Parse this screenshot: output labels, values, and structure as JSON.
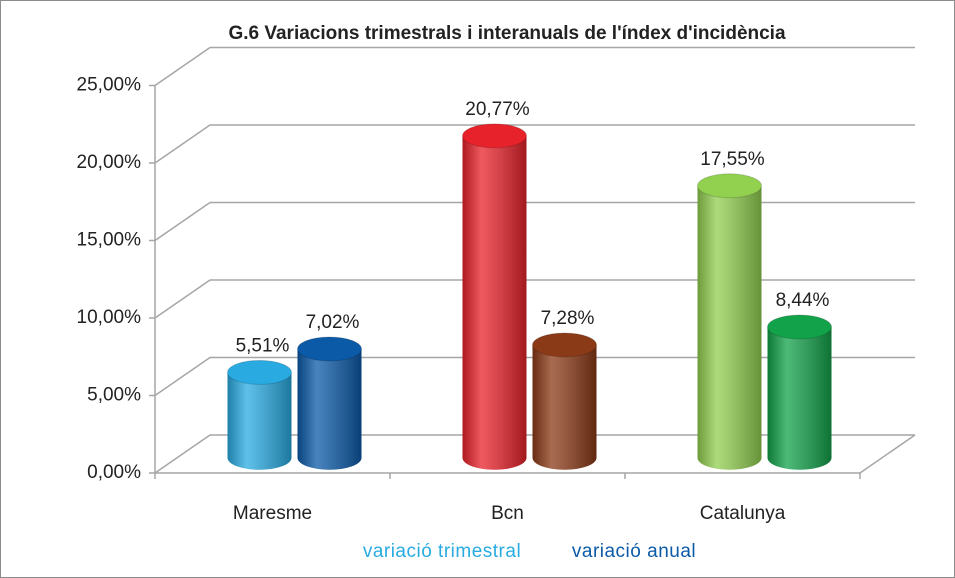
{
  "chart_data": {
    "type": "bar3d",
    "title": "G.6 Variacions trimestrals i interanuals de l'índex d'incidència",
    "categories": [
      "Maresme",
      "Bcn",
      "Catalunya"
    ],
    "series": [
      {
        "name": "variació trimestral",
        "color": "#29abe2",
        "colors": [
          "#29abe2",
          "#e8222a",
          "#92d050"
        ],
        "values": [
          5.51,
          20.77,
          17.55
        ],
        "value_labels": [
          "5,51%",
          "20,77%",
          "17,55%"
        ]
      },
      {
        "name": "variació anual",
        "color": "#0b5aa8",
        "colors": [
          "#0b5aa8",
          "#8b3a17",
          "#12a24a"
        ],
        "values": [
          7.02,
          7.28,
          8.44
        ],
        "value_labels": [
          "7,02%",
          "7,28%",
          "8,44%"
        ]
      }
    ],
    "ylim": [
      0,
      25
    ],
    "yticks": [
      {
        "value": 0,
        "label": "0,00%"
      },
      {
        "value": 5,
        "label": "5,00%"
      },
      {
        "value": 10,
        "label": "10,00%"
      },
      {
        "value": 15,
        "label": "15,00%"
      },
      {
        "value": 20,
        "label": "20,00%"
      },
      {
        "value": 25,
        "label": "25,00%"
      }
    ],
    "grid": true
  }
}
